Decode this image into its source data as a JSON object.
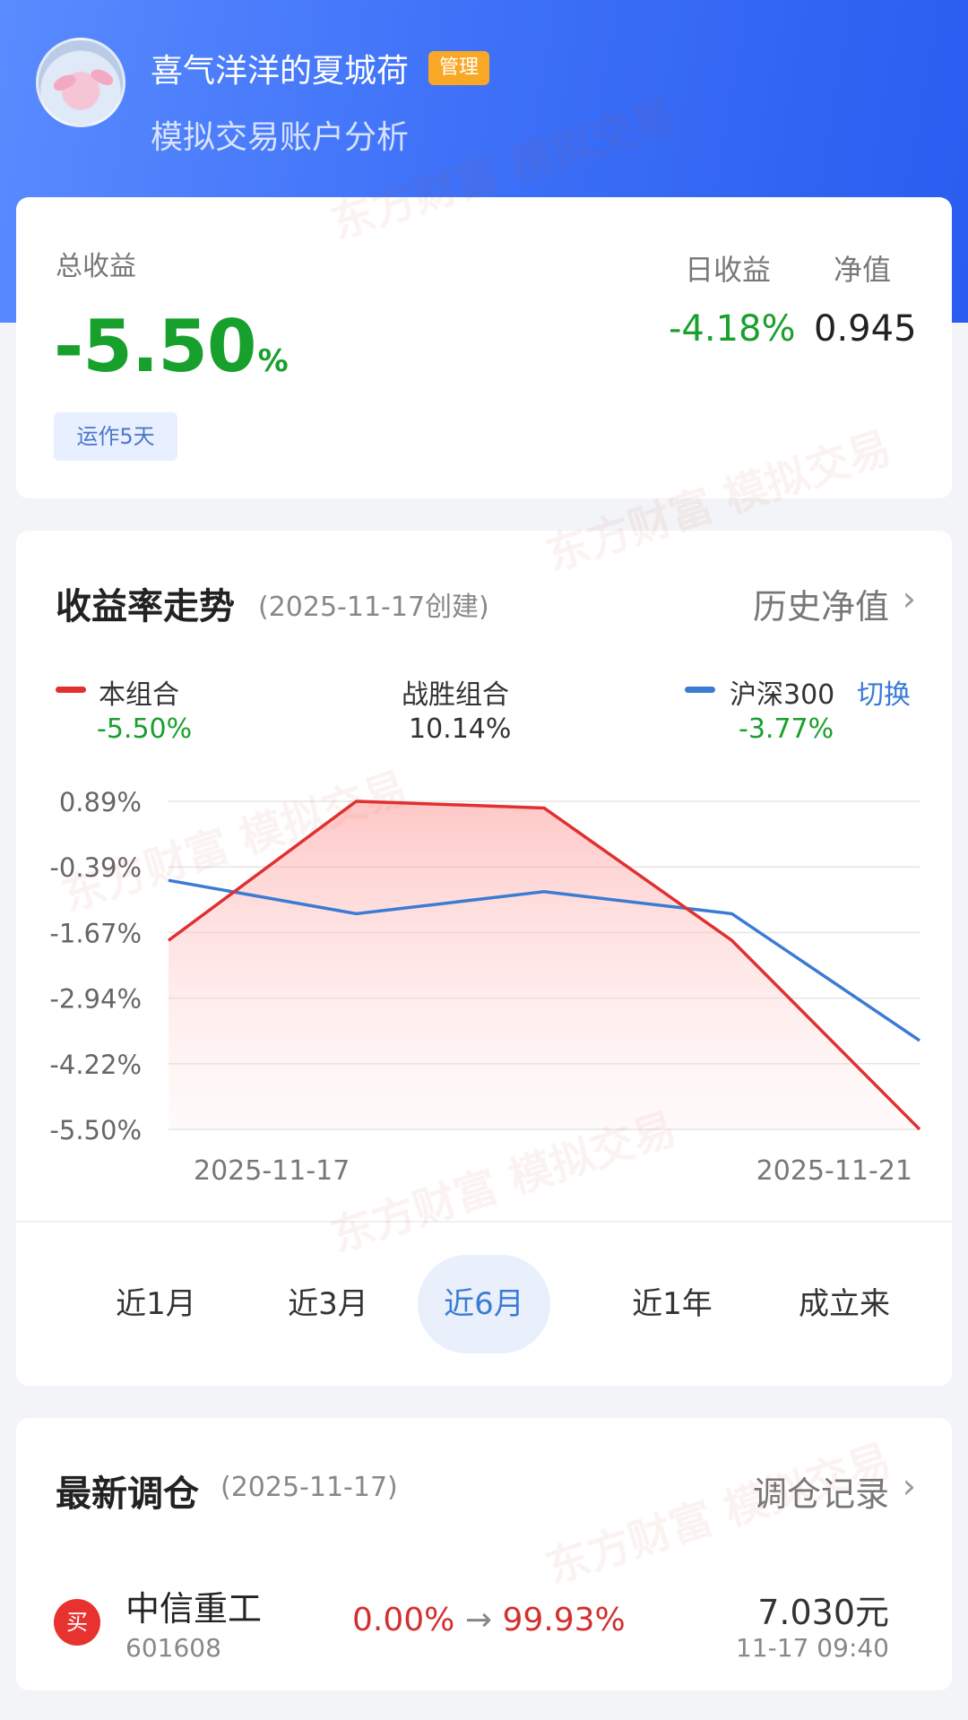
{
  "header": {
    "user_name": "喜气洋洋的夏城荷",
    "badge": "管理",
    "subtitle": "模拟交易账户分析"
  },
  "summary": {
    "total_label": "总收益",
    "total_value": "-5.50",
    "total_unit": "%",
    "run_days": "运作5天",
    "day_label": "日收益",
    "day_value": "-4.18%",
    "nav_label": "净值",
    "nav_value": "0.945"
  },
  "trend": {
    "title": "收益率走势",
    "subtitle": "(2025-11-17创建)",
    "history_link": "历史净值",
    "legend": {
      "mine_label": "本组合",
      "mine_value": "-5.50%",
      "beat_label": "战胜组合",
      "beat_value": "10.14%",
      "index_label": "沪深300",
      "index_value": "-3.77%",
      "switch": "切换"
    },
    "tabs": [
      "近1月",
      "近3月",
      "近6月",
      "近1年",
      "成立来"
    ],
    "active_tab": "近6月"
  },
  "chart_data": {
    "type": "line",
    "x": [
      "2025-11-17",
      "2025-11-18",
      "2025-11-19",
      "2025-11-20",
      "2025-11-21"
    ],
    "x_tick_labels": [
      "2025-11-17",
      "2025-11-21"
    ],
    "y_tick_labels": [
      "0.89%",
      "-0.39%",
      "-1.67%",
      "-2.94%",
      "-4.22%",
      "-5.50%"
    ],
    "ylim": [
      -5.5,
      0.89
    ],
    "series": [
      {
        "name": "本组合",
        "color": "#e03030",
        "values": [
          -1.82,
          0.89,
          0.76,
          -1.82,
          -5.5
        ],
        "area": true
      },
      {
        "name": "沪深300",
        "color": "#3a7bd5",
        "values": [
          -0.65,
          -1.3,
          -0.87,
          -1.3,
          -3.77
        ]
      }
    ],
    "grid": true
  },
  "rebalance": {
    "title": "最新调仓",
    "subtitle": "(2025-11-17)",
    "record_link": "调仓记录",
    "items": [
      {
        "action": "买",
        "name": "中信重工",
        "code": "601608",
        "from": "0.00%",
        "arrow": "→",
        "to": "99.93%",
        "price": "7.030元",
        "time": "11-17  09:40"
      }
    ]
  },
  "colors": {
    "up": "#d32f2f",
    "down": "#18a02d",
    "accent": "#3a7bd5",
    "header_start": "#5a8bff",
    "header_end": "#2a5cf0"
  }
}
